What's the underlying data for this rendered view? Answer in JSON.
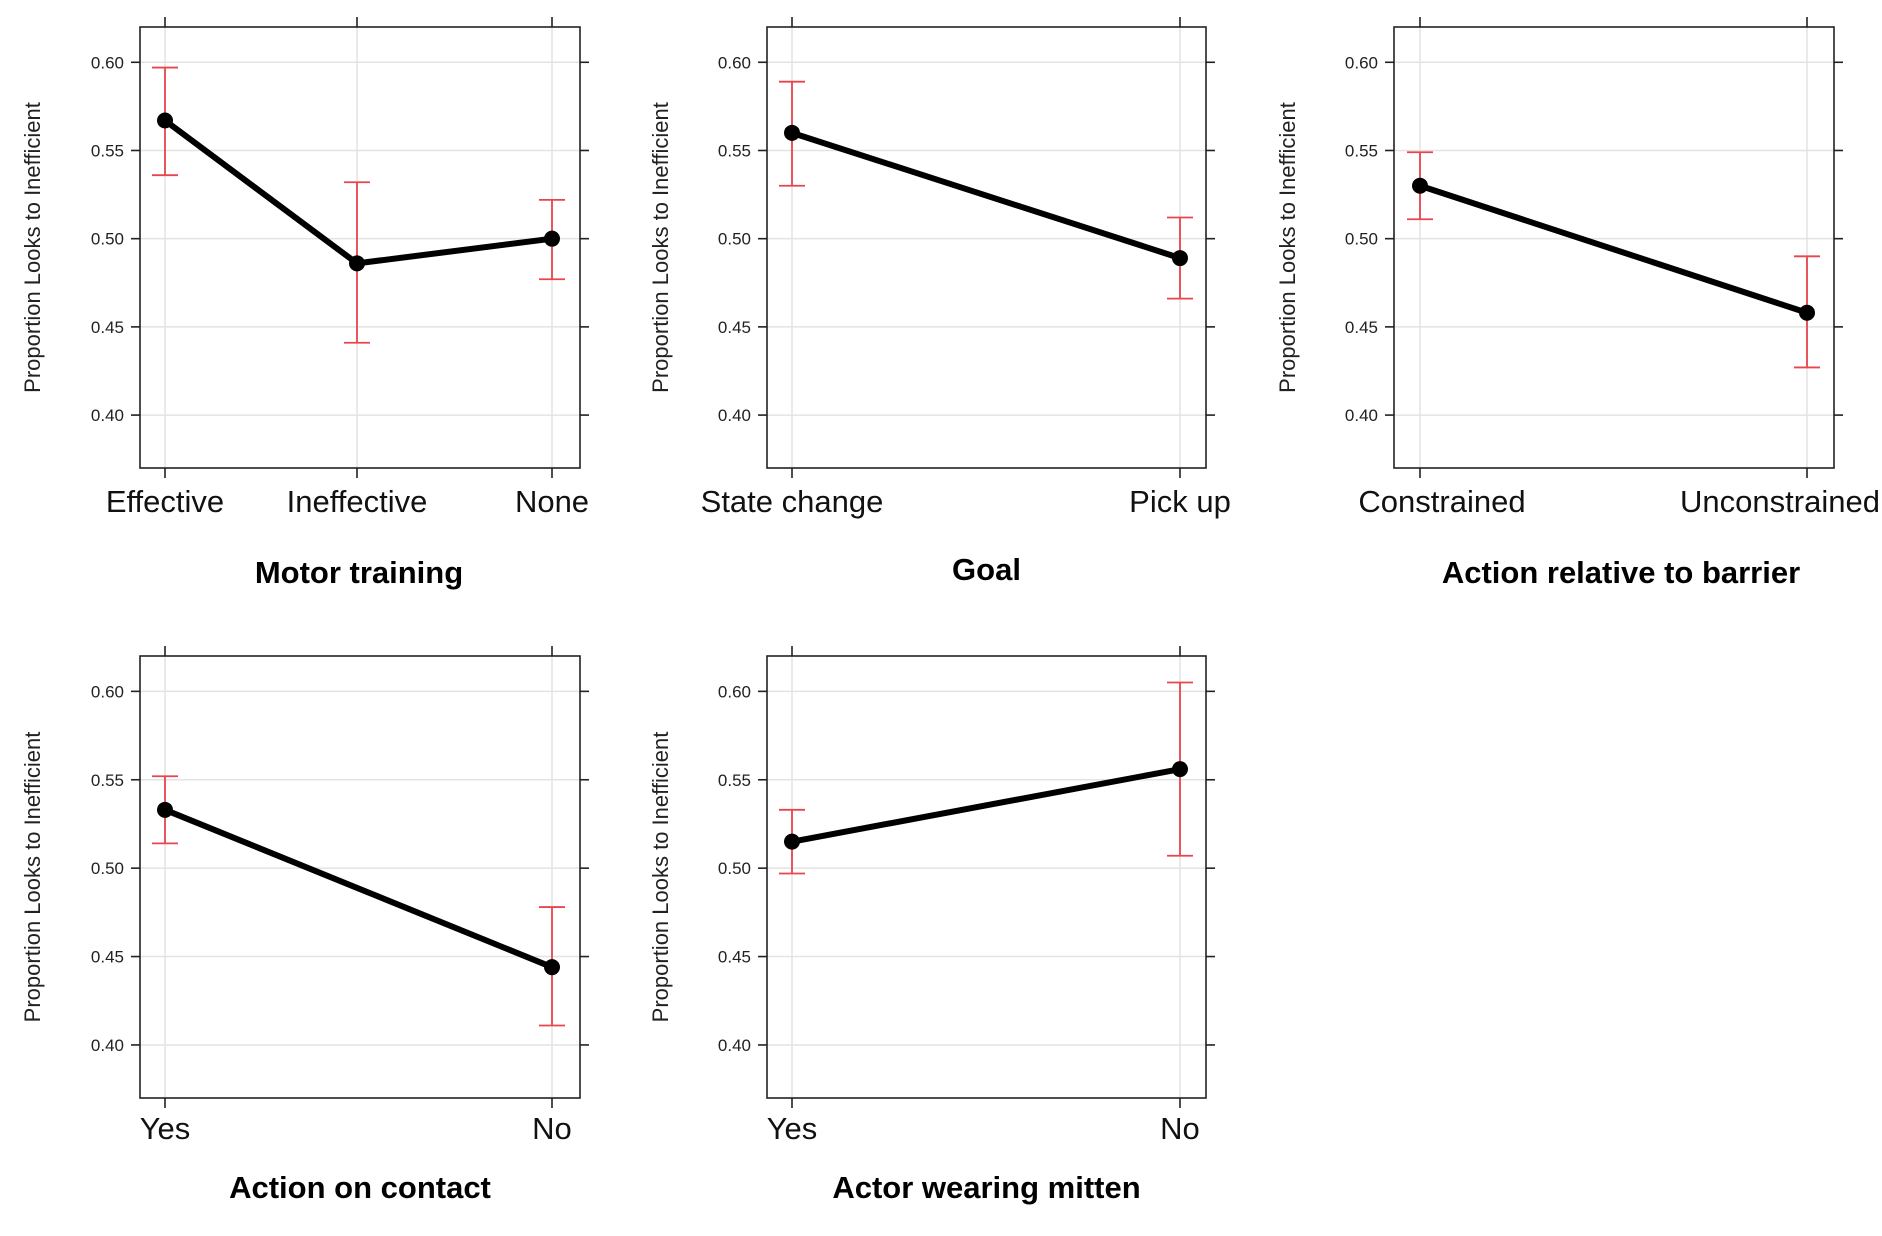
{
  "chart_data": [
    {
      "type": "line",
      "ylabel": "Proportion Looks to Inefficient",
      "xlabel": "Motor training",
      "categories": [
        "Effective",
        "Ineffective",
        "None"
      ],
      "ylim": [
        0.37,
        0.62
      ],
      "yticks": [
        "0.40",
        "0.45",
        "0.50",
        "0.55",
        "0.60"
      ],
      "values": [
        0.567,
        0.486,
        0.5
      ],
      "ci_lower": [
        0.536,
        0.441,
        0.477
      ],
      "ci_upper": [
        0.597,
        0.532,
        0.522
      ],
      "grid": true
    },
    {
      "type": "line",
      "ylabel": "Proportion Looks to Inefficient",
      "xlabel": "Goal",
      "categories": [
        "State change",
        "Pick up"
      ],
      "ylim": [
        0.37,
        0.62
      ],
      "yticks": [
        "0.40",
        "0.45",
        "0.50",
        "0.55",
        "0.60"
      ],
      "values": [
        0.56,
        0.489
      ],
      "ci_lower": [
        0.53,
        0.466
      ],
      "ci_upper": [
        0.589,
        0.512
      ],
      "grid": true
    },
    {
      "type": "line",
      "ylabel": "Proportion Looks to Inefficient",
      "xlabel": "Action relative to barrier",
      "categories": [
        "Constrained",
        "Unconstrained"
      ],
      "ylim": [
        0.37,
        0.62
      ],
      "yticks": [
        "0.40",
        "0.45",
        "0.50",
        "0.55",
        "0.60"
      ],
      "values": [
        0.53,
        0.458
      ],
      "ci_lower": [
        0.511,
        0.427
      ],
      "ci_upper": [
        0.549,
        0.49
      ],
      "grid": true
    },
    {
      "type": "line",
      "ylabel": "Proportion Looks to Inefficient",
      "xlabel": "Action on contact",
      "categories": [
        "Yes",
        "No"
      ],
      "ylim": [
        0.37,
        0.62
      ],
      "yticks": [
        "0.40",
        "0.45",
        "0.50",
        "0.55",
        "0.60"
      ],
      "values": [
        0.533,
        0.444
      ],
      "ci_lower": [
        0.514,
        0.411
      ],
      "ci_upper": [
        0.552,
        0.478
      ],
      "grid": true
    },
    {
      "type": "line",
      "ylabel": "Proportion Looks to Inefficient",
      "xlabel": "Actor wearing mitten",
      "categories": [
        "Yes",
        "No"
      ],
      "ylim": [
        0.37,
        0.62
      ],
      "yticks": [
        "0.40",
        "0.45",
        "0.50",
        "0.55",
        "0.60"
      ],
      "values": [
        0.515,
        0.556
      ],
      "ci_lower": [
        0.497,
        0.507
      ],
      "ci_upper": [
        0.533,
        0.605
      ],
      "grid": true
    }
  ],
  "colors": {
    "line": "#000000",
    "error_bar": "#e8454d",
    "grid": "#e3e3e3",
    "frame": "#222222"
  }
}
